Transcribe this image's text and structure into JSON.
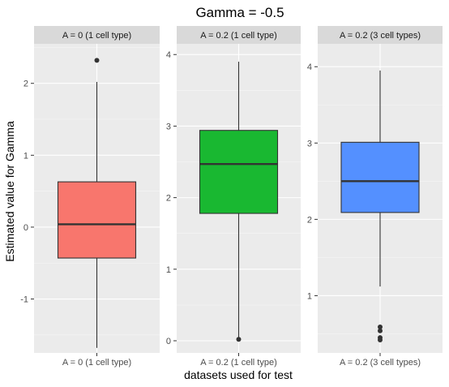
{
  "chart_data": {
    "type": "boxplot",
    "title": "Gamma = -0.5",
    "xlabel": "datasets used for test",
    "ylabel": "Estimated value for Gamma",
    "grid": true,
    "legend": "none",
    "panels": [
      {
        "strip": "A = 0 (1 cell type)",
        "category": "A = 0 (1 cell type)",
        "fill": "#F8766D",
        "ylim": [
          -1.75,
          2.55
        ],
        "yticks": [
          -1,
          0,
          1,
          2
        ],
        "ytick_labels": [
          "-1",
          "0",
          "1",
          "2"
        ],
        "min": -1.68,
        "q1": -0.43,
        "median": 0.04,
        "q3": 0.63,
        "max": 2.02,
        "outliers": [
          2.32
        ]
      },
      {
        "strip": "A = 0.2 (1 cell type)",
        "category": "A = 0.2 (1 cell type)",
        "fill": "#19B831",
        "ylim": [
          -0.17,
          4.15
        ],
        "yticks": [
          0,
          1,
          2,
          3,
          4
        ],
        "ytick_labels": [
          "0",
          "1",
          "2",
          "3",
          "4"
        ],
        "min": 0.02,
        "q1": 1.78,
        "median": 2.47,
        "q3": 2.94,
        "max": 3.9,
        "outliers": [
          0.02
        ]
      },
      {
        "strip": "A = 0.2 (3 cell types)",
        "category": "A = 0.2 (3 cell types)",
        "fill": "#5490FF",
        "ylim": [
          0.25,
          4.3
        ],
        "yticks": [
          1,
          2,
          3,
          4
        ],
        "ytick_labels": [
          "1",
          "2",
          "3",
          "4"
        ],
        "min": 1.12,
        "q1": 2.09,
        "median": 2.5,
        "q3": 3.01,
        "max": 3.95,
        "outliers": [
          0.59,
          0.54,
          0.45,
          0.42
        ]
      }
    ]
  }
}
